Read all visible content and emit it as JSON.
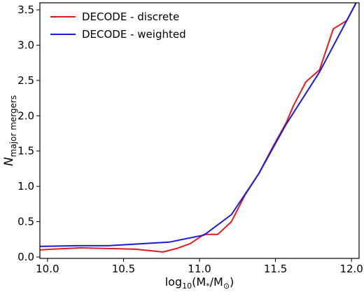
{
  "chart_data": {
    "type": "line",
    "title": "",
    "xlabel": {
      "prefix": "log",
      "sub": "10",
      "body": "(M",
      "body_sub": "*",
      "mid": "/M",
      "mid_sub": "⊙",
      "suffix": ")"
    },
    "ylabel": {
      "main": "N",
      "sub": "major mergers"
    },
    "xlim": [
      9.95,
      12.05
    ],
    "ylim": [
      -0.02,
      3.6
    ],
    "xticks": [
      10.0,
      10.5,
      11.0,
      11.5,
      12.0
    ],
    "xtick_labels": [
      "10.0",
      "10.5",
      "11.0",
      "11.5",
      "12.0"
    ],
    "yticks": [
      0.0,
      0.5,
      1.0,
      1.5,
      2.0,
      2.5,
      3.0,
      3.5
    ],
    "ytick_labels": [
      "0.0",
      "0.5",
      "1.0",
      "1.5",
      "2.0",
      "2.5",
      "3.0",
      "3.5"
    ],
    "grid": false,
    "legend_position": "top-left",
    "series": [
      {
        "name": "DECODE - discrete",
        "color": "#e41a1c",
        "x": [
          9.95,
          10.03,
          10.22,
          10.4,
          10.58,
          10.76,
          10.85,
          10.94,
          11.03,
          11.12,
          11.21,
          11.3,
          11.39,
          11.48,
          11.57,
          11.62,
          11.7,
          11.79,
          11.88,
          11.97,
          12.05
        ],
        "y": [
          0.1,
          0.11,
          0.13,
          0.12,
          0.11,
          0.07,
          0.12,
          0.19,
          0.32,
          0.32,
          0.5,
          0.88,
          1.18,
          1.55,
          1.9,
          2.15,
          2.48,
          2.65,
          3.23,
          3.35,
          3.68
        ]
      },
      {
        "name": "DECODE - weighted",
        "color": "#1a1adc",
        "x": [
          9.95,
          10.2,
          10.4,
          10.8,
          11.03,
          11.21,
          11.39,
          11.57,
          11.79,
          12.05
        ],
        "y": [
          0.15,
          0.16,
          0.16,
          0.21,
          0.31,
          0.6,
          1.18,
          1.88,
          2.62,
          3.68
        ]
      }
    ]
  }
}
